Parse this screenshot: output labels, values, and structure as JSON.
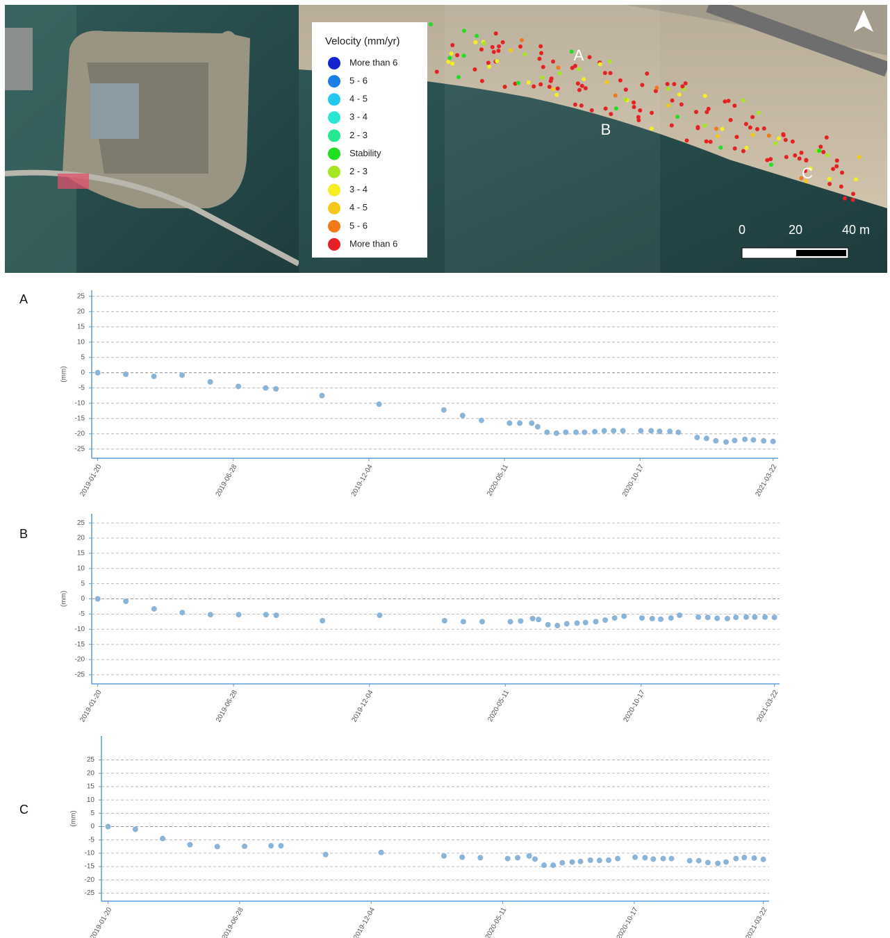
{
  "map": {
    "legend": {
      "title": "Velocity (mm/yr)",
      "items": [
        {
          "label": "More than 6",
          "color": "#1424d2"
        },
        {
          "label": "5 - 6",
          "color": "#1a7fe6"
        },
        {
          "label": "4 - 5",
          "color": "#22c8f0"
        },
        {
          "label": "3 - 4",
          "color": "#2ae6d2"
        },
        {
          "label": "2 - 3",
          "color": "#22e890"
        },
        {
          "label": "Stability",
          "color": "#22de22"
        },
        {
          "label": "2 - 3",
          "color": "#a6e622"
        },
        {
          "label": "3 - 4",
          "color": "#f6ee22"
        },
        {
          "label": "4 - 5",
          "color": "#f6c81a"
        },
        {
          "label": "5 - 6",
          "color": "#f07a1a"
        },
        {
          "label": "More than 6",
          "color": "#e42222"
        }
      ]
    },
    "point_labels": [
      "A",
      "B",
      "C"
    ],
    "scale_bar": [
      "0",
      "20",
      "40 m"
    ]
  },
  "chart_data": [
    {
      "type": "scatter",
      "label": "A",
      "y_label": "(mm)",
      "color": "#8ab4d8",
      "x": [
        "2019-01-20",
        "2019-02-22",
        "2019-03-27",
        "2019-04-29",
        "2019-06-01",
        "2019-07-04",
        "2019-08-05",
        "2019-08-17",
        "2019-10-10",
        "2019-12-16",
        "2020-03-01",
        "2020-03-23",
        "2020-04-14",
        "2020-05-17",
        "2020-05-29",
        "2020-06-12",
        "2020-06-19",
        "2020-06-30",
        "2020-07-11",
        "2020-07-22",
        "2020-08-03",
        "2020-08-13",
        "2020-08-25",
        "2020-09-05",
        "2020-09-16",
        "2020-09-27",
        "2020-10-18",
        "2020-10-30",
        "2020-11-09",
        "2020-11-21",
        "2020-12-01",
        "2020-12-23",
        "2021-01-03",
        "2021-01-14",
        "2021-01-26",
        "2021-02-05",
        "2021-02-17",
        "2021-02-27",
        "2021-03-11",
        "2021-03-22"
      ],
      "values": [
        0,
        -0.5,
        -1.2,
        -0.8,
        -3,
        -4.5,
        -5,
        -5.3,
        -7.5,
        -10.3,
        -12.2,
        -14,
        -15.6,
        -16.5,
        -16.5,
        -16.5,
        -17.7,
        -19.5,
        -19.8,
        -19.5,
        -19.5,
        -19.5,
        -19.3,
        -19,
        -19,
        -19,
        -19,
        -19,
        -19.2,
        -19.2,
        -19.5,
        -21.2,
        -21.5,
        -22.3,
        -22.7,
        -22.2,
        -21.8,
        -22,
        -22.3,
        -22.5
      ],
      "xlim": [
        "2019-01-13",
        "2021-03-28"
      ],
      "xticks": [
        "2019-01-20",
        "2019-06-28",
        "2019-12-04",
        "2020-05-11",
        "2020-10-17",
        "2021-03-22"
      ],
      "ylim": [
        -28,
        27
      ],
      "yticks": [
        25,
        20,
        15,
        10,
        5,
        0,
        -5,
        -10,
        -15,
        -20,
        -25
      ],
      "grid": true
    },
    {
      "type": "scatter",
      "label": "B",
      "y_label": "(mm)",
      "color": "#8ab4d8",
      "x": [
        "2019-01-20",
        "2019-02-22",
        "2019-03-27",
        "2019-04-29",
        "2019-06-01",
        "2019-07-04",
        "2019-08-05",
        "2019-08-17",
        "2019-10-10",
        "2019-12-16",
        "2020-03-01",
        "2020-03-23",
        "2020-04-14",
        "2020-05-17",
        "2020-05-29",
        "2020-06-12",
        "2020-06-19",
        "2020-06-30",
        "2020-07-11",
        "2020-07-22",
        "2020-08-03",
        "2020-08-13",
        "2020-08-25",
        "2020-09-05",
        "2020-09-16",
        "2020-09-27",
        "2020-10-18",
        "2020-10-30",
        "2020-11-09",
        "2020-11-21",
        "2020-12-01",
        "2020-12-23",
        "2021-01-03",
        "2021-01-14",
        "2021-01-26",
        "2021-02-05",
        "2021-02-17",
        "2021-02-27",
        "2021-03-11",
        "2021-03-22"
      ],
      "values": [
        0,
        -0.8,
        -3.3,
        -4.5,
        -5.2,
        -5.2,
        -5.2,
        -5.4,
        -7.2,
        -5.4,
        -7.2,
        -7.5,
        -7.5,
        -7.5,
        -7.3,
        -6.5,
        -6.8,
        -8.5,
        -8.8,
        -8.2,
        -8,
        -7.8,
        -7.5,
        -7,
        -6.3,
        -5.7,
        -6.3,
        -6.5,
        -6.7,
        -6.3,
        -5.4,
        -6,
        -6.1,
        -6.4,
        -6.5,
        -6.1,
        -6,
        -6,
        -6,
        -6.1
      ],
      "xlim": [
        "2019-01-13",
        "2021-03-28"
      ],
      "xticks": [
        "2019-01-20",
        "2019-06-28",
        "2019-12-04",
        "2020-05-11",
        "2020-10-17",
        "2021-03-22"
      ],
      "ylim": [
        -28,
        28
      ],
      "yticks": [
        25,
        20,
        15,
        10,
        5,
        0,
        -5,
        -10,
        -15,
        -20,
        -25
      ],
      "grid": true
    },
    {
      "type": "scatter",
      "label": "C",
      "y_label": "(mm)",
      "color": "#8ab4d8",
      "x": [
        "2019-01-20",
        "2019-02-22",
        "2019-03-27",
        "2019-04-29",
        "2019-06-01",
        "2019-07-04",
        "2019-08-05",
        "2019-08-17",
        "2019-10-10",
        "2019-12-16",
        "2020-03-01",
        "2020-03-23",
        "2020-04-14",
        "2020-05-17",
        "2020-05-29",
        "2020-06-12",
        "2020-06-19",
        "2020-06-30",
        "2020-07-11",
        "2020-07-22",
        "2020-08-03",
        "2020-08-13",
        "2020-08-25",
        "2020-09-05",
        "2020-09-16",
        "2020-09-27",
        "2020-10-18",
        "2020-10-30",
        "2020-11-09",
        "2020-11-21",
        "2020-12-01",
        "2020-12-23",
        "2021-01-03",
        "2021-01-14",
        "2021-01-26",
        "2021-02-05",
        "2021-02-17",
        "2021-02-27",
        "2021-03-11",
        "2021-03-22"
      ],
      "values": [
        0,
        -1,
        -4.5,
        -6.8,
        -7.5,
        -7.4,
        -7.2,
        -7.2,
        -10.5,
        -9.7,
        -11,
        -11.5,
        -11.7,
        -12,
        -11.7,
        -11,
        -12.2,
        -14.5,
        -14.5,
        -13.6,
        -13.3,
        -13.1,
        -12.6,
        -12.7,
        -12.6,
        -12,
        -11.5,
        -11.7,
        -12.2,
        -12,
        -12,
        -12.8,
        -12.8,
        -13.5,
        -13.8,
        -13.3,
        -12,
        -11.6,
        -11.8,
        -12.3
      ],
      "xlim": [
        "2019-01-12",
        "2021-03-29"
      ],
      "xticks": [
        "2019-01-20",
        "2019-06-28",
        "2019-12-04",
        "2020-05-11",
        "2020-10-17",
        "2021-03-22"
      ],
      "ylim": [
        -28,
        34
      ],
      "yticks": [
        25,
        20,
        15,
        10,
        5,
        0,
        -5,
        -10,
        -15,
        -20,
        -25
      ],
      "grid": true
    }
  ]
}
